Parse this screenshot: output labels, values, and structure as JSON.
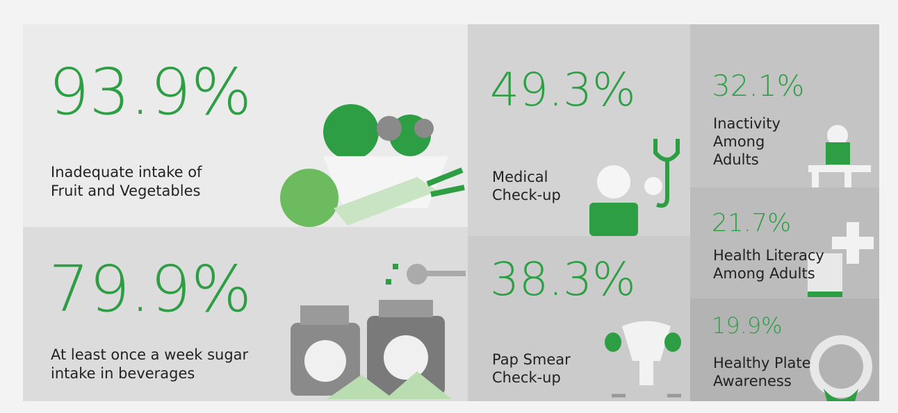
{
  "tiles": [
    {
      "value": "93.9%",
      "label": [
        "Inadequate intake of",
        "Fruit and Vegetables"
      ]
    },
    {
      "value": "79.9%",
      "label": [
        "At least once a week sugar",
        "intake in beverages"
      ]
    },
    {
      "value": "49.3%",
      "label": [
        "Medical",
        "Check-up"
      ]
    },
    {
      "value": "38.3%",
      "label": [
        "Pap Smear",
        "Check-up"
      ]
    },
    {
      "value": "32.1%",
      "label": [
        "Inactivity",
        "Among",
        "Adults"
      ]
    },
    {
      "value": "21.7%",
      "label": [
        "Health Literacy",
        "Among Adults"
      ]
    },
    {
      "value": "19.9%",
      "label": [
        "Healthy Plate",
        "Awareness"
      ]
    }
  ]
}
